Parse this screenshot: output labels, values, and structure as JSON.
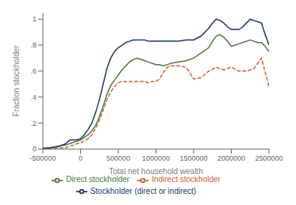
{
  "chart_data": {
    "type": "line",
    "xlabel": "Total net household wealth",
    "ylabel": "Fraction stockholder",
    "xlim": [
      -500000,
      2500000
    ],
    "ylim": [
      0,
      1.05
    ],
    "xticks": [
      -500000,
      0,
      500000,
      1000000,
      1500000,
      2000000,
      2500000
    ],
    "yticks": [
      0,
      {
        "value": 0.2,
        "label": ".2"
      },
      {
        "value": 0.4,
        "label": ".4"
      },
      {
        "value": 0.6,
        "label": ".6"
      },
      {
        "value": 0.8,
        "label": ".8"
      },
      1
    ],
    "grid": false,
    "legend": "bottom",
    "series": [
      {
        "name": "Direct stockholder",
        "color": "#4d7a3e",
        "line_style": "solid",
        "x": [
          -500000,
          -400000,
          -300000,
          -200000,
          -100000,
          -50000,
          0,
          50000,
          100000,
          150000,
          200000,
          250000,
          300000,
          350000,
          400000,
          450000,
          500000,
          550000,
          600000,
          650000,
          700000,
          750000,
          800000,
          850000,
          900000,
          950000,
          1000000,
          1050000,
          1100000,
          1150000,
          1200000,
          1300000,
          1400000,
          1500000,
          1600000,
          1700000,
          1750000,
          1800000,
          1850000,
          1900000,
          1950000,
          2000000,
          2050000,
          2100000,
          2150000,
          2200000,
          2250000,
          2300000,
          2350000,
          2400000,
          2450000,
          2500000
        ],
        "values": [
          0.01,
          0.01,
          0.02,
          0.03,
          0.05,
          0.06,
          0.07,
          0.09,
          0.11,
          0.14,
          0.18,
          0.25,
          0.33,
          0.42,
          0.49,
          0.53,
          0.57,
          0.61,
          0.64,
          0.67,
          0.69,
          0.7,
          0.69,
          0.68,
          0.67,
          0.66,
          0.65,
          0.65,
          0.64,
          0.65,
          0.66,
          0.67,
          0.68,
          0.7,
          0.74,
          0.78,
          0.83,
          0.87,
          0.88,
          0.86,
          0.83,
          0.79,
          0.8,
          0.81,
          0.82,
          0.83,
          0.84,
          0.83,
          0.82,
          0.82,
          0.79,
          0.75
        ]
      },
      {
        "name": "Indirect stockholder",
        "color": "#cc6633",
        "line_style": "dashed",
        "x": [
          -500000,
          -400000,
          -300000,
          -200000,
          -100000,
          -50000,
          0,
          50000,
          100000,
          150000,
          200000,
          250000,
          300000,
          350000,
          400000,
          450000,
          500000,
          550000,
          600000,
          650000,
          700000,
          750000,
          800000,
          850000,
          900000,
          950000,
          1000000,
          1050000,
          1100000,
          1150000,
          1200000,
          1300000,
          1400000,
          1500000,
          1600000,
          1700000,
          1800000,
          1900000,
          2000000,
          2100000,
          2200000,
          2300000,
          2400000,
          2500000
        ],
        "values": [
          0.0,
          0.0,
          0.01,
          0.01,
          0.03,
          0.04,
          0.05,
          0.06,
          0.08,
          0.11,
          0.16,
          0.22,
          0.3,
          0.38,
          0.44,
          0.48,
          0.51,
          0.52,
          0.52,
          0.52,
          0.52,
          0.52,
          0.52,
          0.52,
          0.51,
          0.52,
          0.52,
          0.54,
          0.59,
          0.63,
          0.64,
          0.64,
          0.63,
          0.54,
          0.55,
          0.6,
          0.63,
          0.61,
          0.63,
          0.6,
          0.6,
          0.62,
          0.7,
          0.48
        ]
      },
      {
        "name": "Stockholder (direct or indirect)",
        "color": "#1a3a6b",
        "line_style": "solid",
        "x": [
          -500000,
          -400000,
          -300000,
          -250000,
          -200000,
          -180000,
          -160000,
          -140000,
          -120000,
          -100000,
          -80000,
          -50000,
          0,
          50000,
          100000,
          150000,
          200000,
          250000,
          300000,
          350000,
          400000,
          450000,
          500000,
          550000,
          600000,
          650000,
          700000,
          750000,
          800000,
          850000,
          900000,
          950000,
          1000000,
          1050000,
          1100000,
          1150000,
          1200000,
          1300000,
          1400000,
          1500000,
          1600000,
          1700000,
          1750000,
          1800000,
          1850000,
          1900000,
          1950000,
          2000000,
          2050000,
          2100000,
          2150000,
          2200000,
          2250000,
          2300000,
          2350000,
          2400000,
          2450000,
          2500000
        ],
        "values": [
          0.0,
          0.01,
          0.02,
          0.03,
          0.04,
          0.05,
          0.06,
          0.07,
          0.07,
          0.07,
          0.07,
          0.07,
          0.08,
          0.11,
          0.15,
          0.2,
          0.28,
          0.38,
          0.5,
          0.62,
          0.7,
          0.75,
          0.78,
          0.8,
          0.82,
          0.83,
          0.84,
          0.84,
          0.84,
          0.84,
          0.83,
          0.83,
          0.83,
          0.83,
          0.83,
          0.83,
          0.83,
          0.83,
          0.84,
          0.84,
          0.87,
          0.93,
          0.97,
          1.0,
          0.99,
          0.97,
          0.94,
          0.92,
          0.92,
          0.92,
          0.94,
          0.97,
          1.0,
          0.99,
          0.98,
          0.97,
          0.88,
          0.8
        ]
      }
    ]
  }
}
